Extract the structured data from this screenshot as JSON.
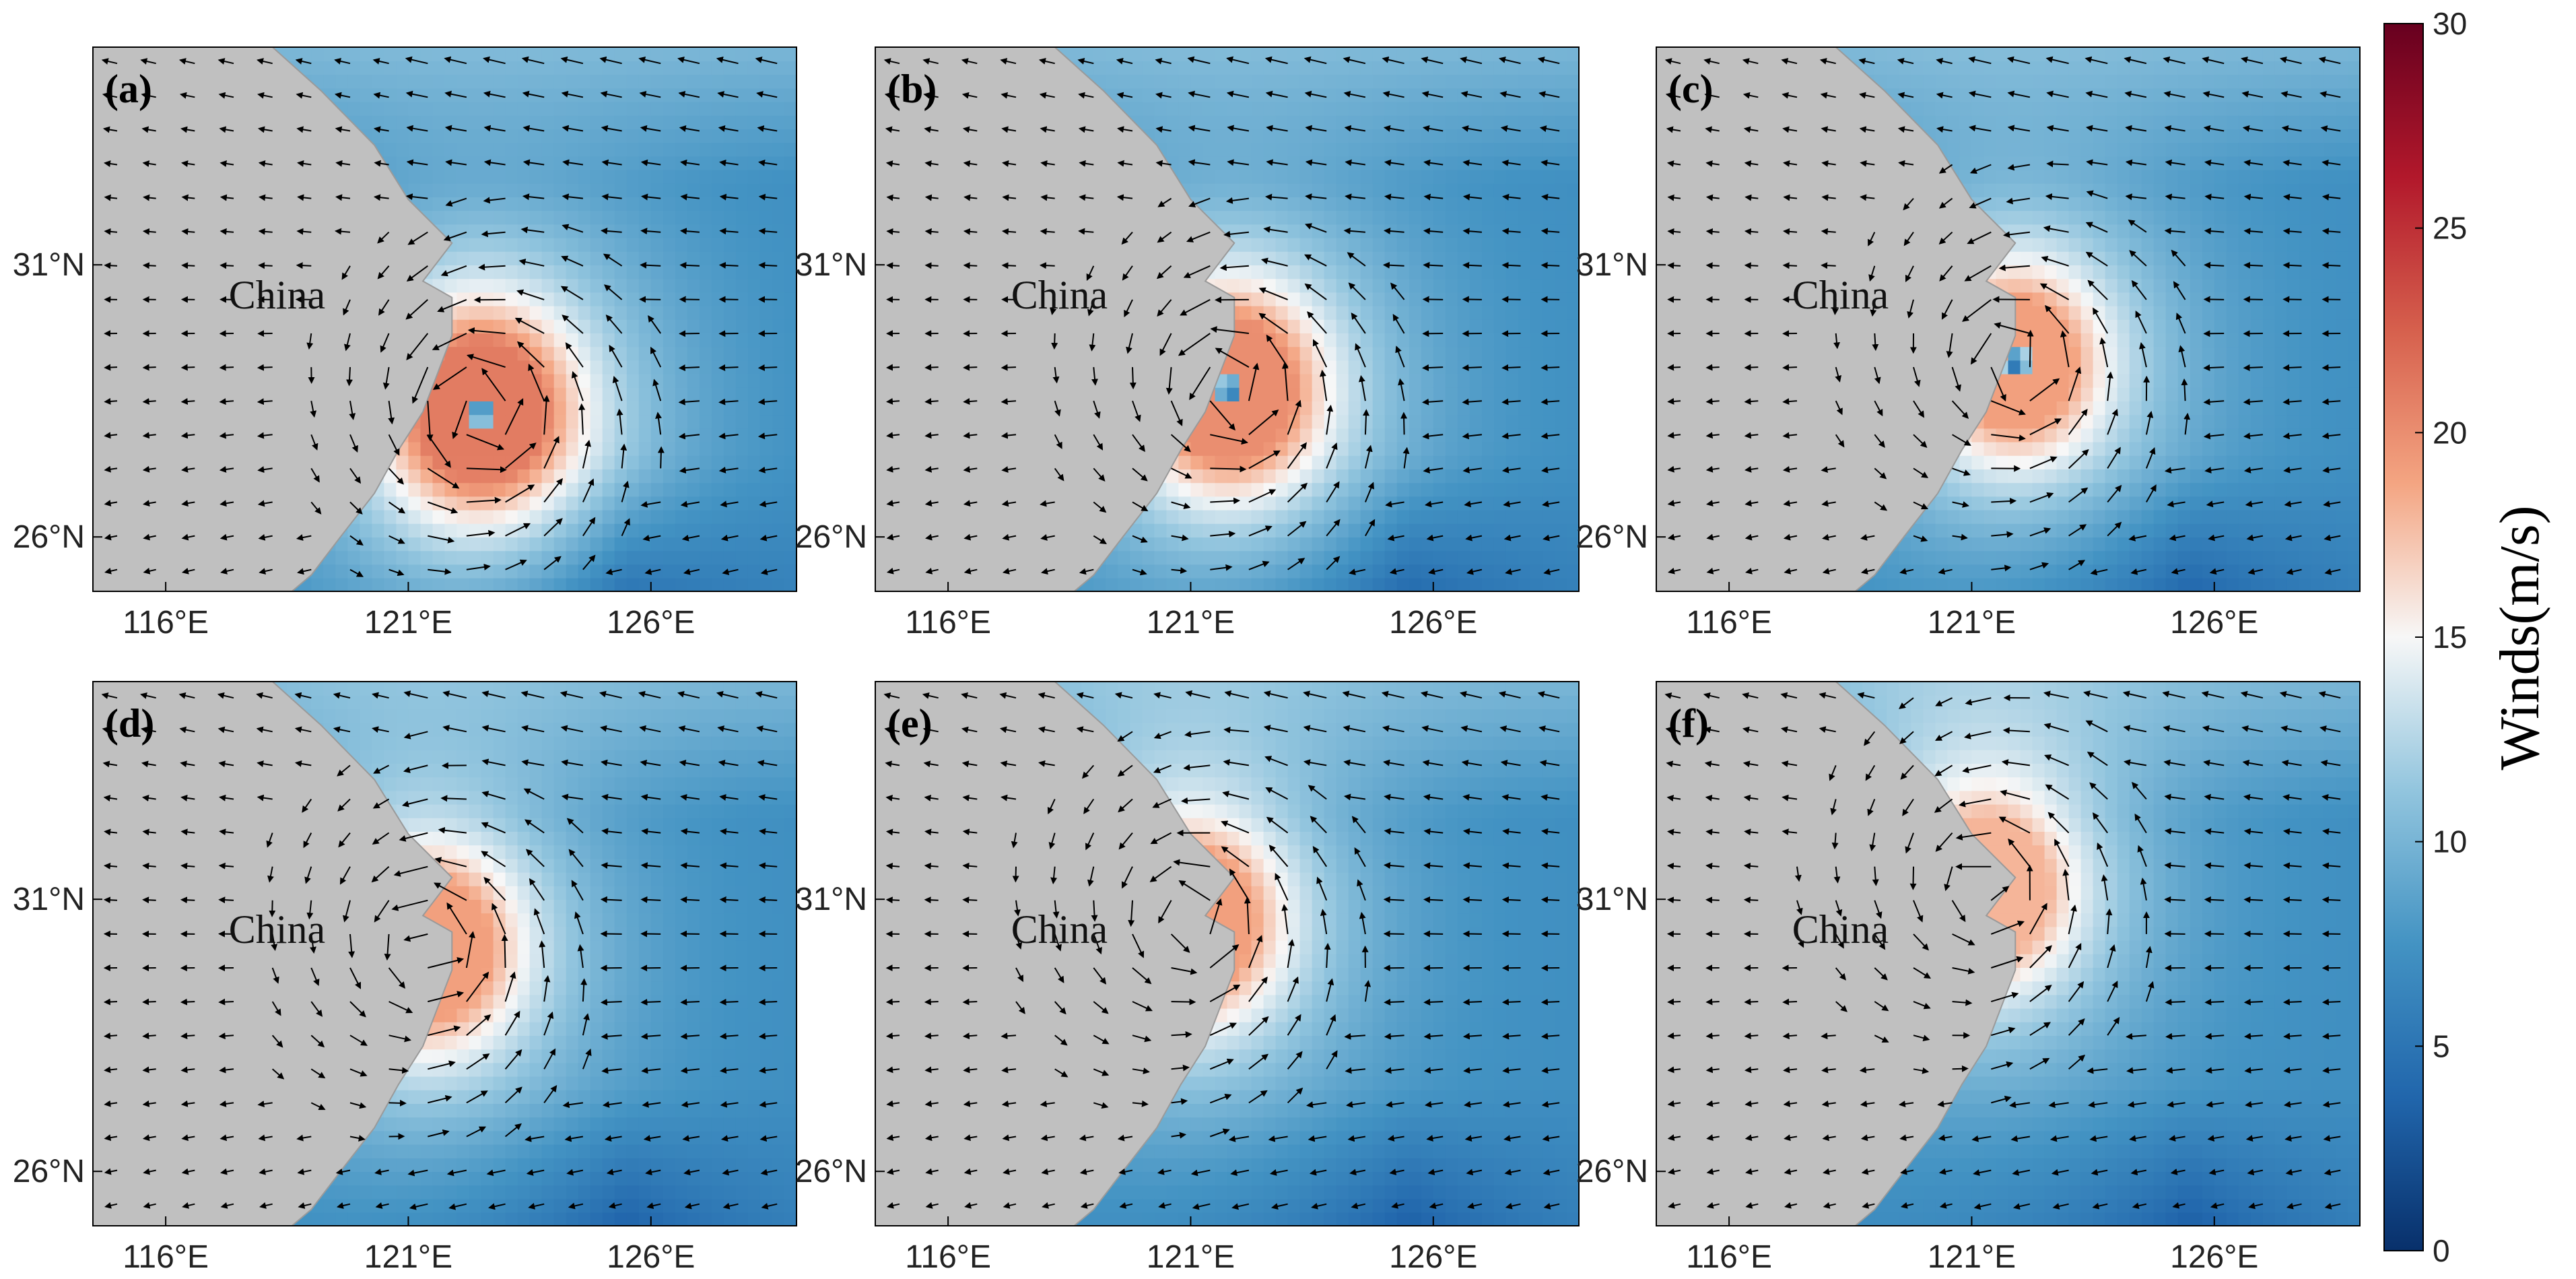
{
  "colorbar": {
    "label": "Winds(m/s)",
    "min": 0,
    "max": 30,
    "ticks": [
      "0",
      "5",
      "10",
      "15",
      "20",
      "25",
      "30"
    ],
    "colors": [
      "#08306b",
      "#2166ac",
      "#4393c3",
      "#92c5de",
      "#f7f7f7",
      "#f4a582",
      "#d6604d",
      "#b2182b",
      "#67001f"
    ]
  },
  "axes": {
    "x_ticks": [
      "116°E",
      "121°E",
      "126°E"
    ],
    "y_ticks": [
      "31°N",
      "26°N"
    ],
    "lon_range": [
      114.5,
      129.0
    ],
    "lat_range": [
      25.0,
      35.0
    ]
  },
  "land_label": "China",
  "land_color": "#c0c0c0",
  "chart_data": [
    {
      "type": "heatmap",
      "panel": "(a)",
      "center": [
        122.5,
        28.3
      ],
      "max_wind": 21,
      "eye_radius_deg": 0.3,
      "ring_radius_deg": 1.3
    },
    {
      "type": "heatmap",
      "panel": "(b)",
      "center": [
        121.8,
        28.7
      ],
      "max_wind": 20,
      "eye_radius_deg": 0.3,
      "ring_radius_deg": 1.3
    },
    {
      "type": "heatmap",
      "panel": "(c)",
      "center": [
        121.9,
        29.2
      ],
      "max_wind": 19,
      "eye_radius_deg": 0.3,
      "ring_radius_deg": 1.2
    },
    {
      "type": "heatmap",
      "panel": "(d)",
      "center": [
        121.4,
        30.1
      ],
      "max_wind": 19,
      "eye_radius_deg": 0.3,
      "ring_radius_deg": 1.3
    },
    {
      "type": "heatmap",
      "panel": "(e)",
      "center": [
        121.0,
        30.6
      ],
      "max_wind": 19,
      "eye_radius_deg": 0.3,
      "ring_radius_deg": 1.3
    },
    {
      "type": "heatmap",
      "panel": "(f)",
      "center": [
        121.3,
        31.2
      ],
      "max_wind": 18,
      "eye_radius_deg": 0.3,
      "ring_radius_deg": 1.3
    }
  ]
}
